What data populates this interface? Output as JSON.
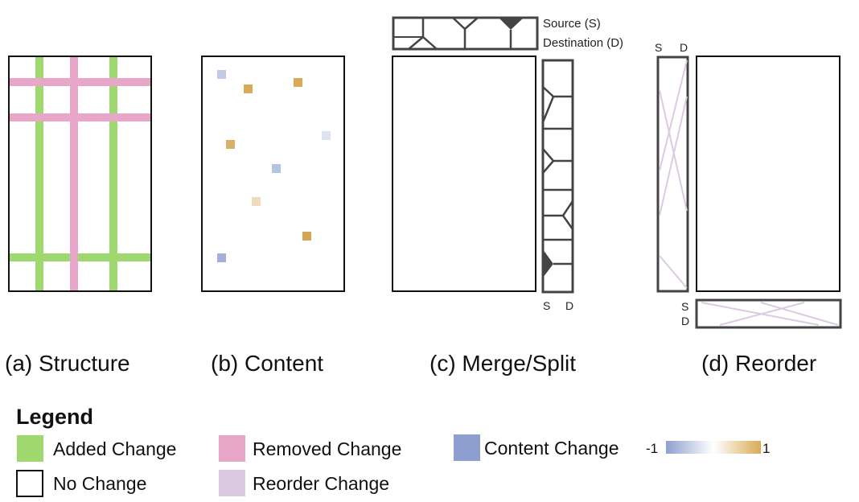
{
  "panels": {
    "a": {
      "caption": "(a) Structure"
    },
    "b": {
      "caption": "(b) Content"
    },
    "c": {
      "caption": "(c) Merge/Split",
      "source_label": "Source (S)",
      "destination_label": "Destination (D)",
      "s": "S",
      "d": "D"
    },
    "d": {
      "caption": "(d) Reorder",
      "s": "S",
      "d": "D"
    }
  },
  "legend": {
    "title": "Legend",
    "items": [
      {
        "label": "Added Change",
        "color": "#9fd86e"
      },
      {
        "label": "Removed Change",
        "color": "#e8a7c9"
      },
      {
        "label": "Content Change",
        "color": "#8e9fcf"
      },
      {
        "label": "No Change",
        "color": "#ffffff"
      },
      {
        "label": "Reorder Change",
        "color": "#dccae3"
      }
    ],
    "scale": {
      "min_label": "-1",
      "max_label": "1",
      "colors": [
        "#8e9fcf",
        "#ffffff",
        "#d9aa57"
      ]
    }
  },
  "colors": {
    "added": "#9fd86e",
    "removed": "#e8a7c9",
    "reorder": "#dccae3",
    "outline": "#444444"
  }
}
